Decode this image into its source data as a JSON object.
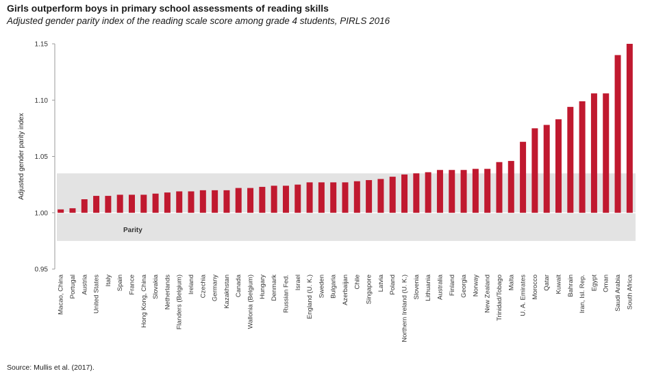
{
  "title": "Girls outperform boys in primary school assessments of reading skills",
  "subtitle": "Adjusted gender parity index of the reading scale score among grade 4 students, PIRLS 2016",
  "source": "Source: Mullis et al. (2017).",
  "colors": {
    "bar": "#c0192f",
    "parity_band": "#e3e3e3",
    "parity_line": "#ffffff"
  },
  "chart_data": {
    "type": "bar",
    "title": "",
    "xlabel": "",
    "ylabel": "Adjusted gender parity index",
    "ylim": [
      0.95,
      1.15
    ],
    "yticks": [
      "0.95",
      "1.00",
      "1.05",
      "1.10",
      "1.15"
    ],
    "grid": false,
    "parity_band": [
      0.975,
      1.035
    ],
    "parity_line": 1.0,
    "annotation": "Parity",
    "categories": [
      "Macao, China",
      "Portugal",
      "Austria",
      "United States",
      "Italy",
      "Spain",
      "France",
      "Hong Kong, China",
      "Slovakia",
      "Netherlands",
      "Flanders (Belgium)",
      "Ireland",
      "Czechia",
      "Germany",
      "Kazakhstan",
      "Canada",
      "Wallonia (Belgium)",
      "Hungary",
      "Denmark",
      "Russian Fed.",
      "Israel",
      "England (U. K.)",
      "Sweden",
      "Bulgaria",
      "Azerbaijan",
      "Chile",
      "Singapore",
      "Latvia",
      "Poland",
      "Northern Ireland (U. K.)",
      "Slovenia",
      "Lithuania",
      "Australia",
      "Finland",
      "Georgia",
      "Norway",
      "New Zealand",
      "Trinidad/Tobago",
      "Malta",
      "U. A. Emirates",
      "Morocco",
      "Qatar",
      "Kuwait",
      "Bahrain",
      "Iran, Isl. Rep.",
      "Egypt",
      "Oman",
      "Saudi Arabia",
      "South Africa"
    ],
    "values": [
      1.003,
      1.004,
      1.012,
      1.015,
      1.015,
      1.016,
      1.016,
      1.016,
      1.017,
      1.018,
      1.019,
      1.019,
      1.02,
      1.02,
      1.02,
      1.022,
      1.022,
      1.023,
      1.024,
      1.024,
      1.025,
      1.027,
      1.027,
      1.027,
      1.027,
      1.028,
      1.029,
      1.03,
      1.032,
      1.034,
      1.035,
      1.036,
      1.038,
      1.038,
      1.038,
      1.039,
      1.039,
      1.045,
      1.046,
      1.063,
      1.075,
      1.078,
      1.083,
      1.094,
      1.099,
      1.106,
      1.106,
      1.14,
      1.15
    ]
  }
}
